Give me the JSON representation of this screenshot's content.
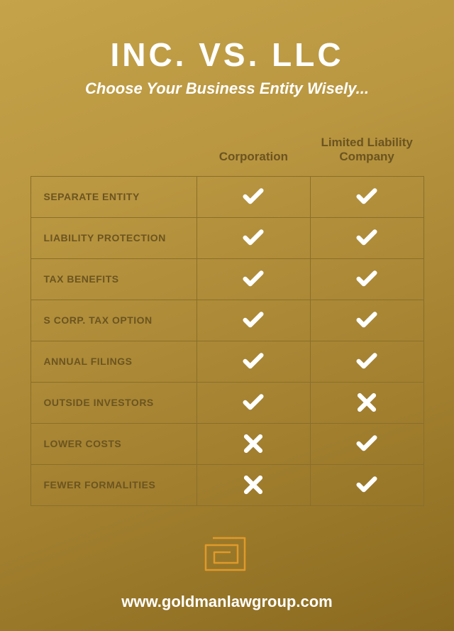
{
  "title": "INC.  VS.  LLC",
  "subtitle": "Choose Your Business Entity Wisely...",
  "columns": [
    "Corporation",
    "Limited Liability\nCompany"
  ],
  "rows": [
    {
      "label": "SEPARATE ENTITY",
      "corp": true,
      "llc": true
    },
    {
      "label": "LIABILITY PROTECTION",
      "corp": true,
      "llc": true
    },
    {
      "label": "TAX BENEFITS",
      "corp": true,
      "llc": true
    },
    {
      "label": "S CORP. TAX OPTION",
      "corp": true,
      "llc": true
    },
    {
      "label": "ANNUAL FILINGS",
      "corp": true,
      "llc": true
    },
    {
      "label": "OUTSIDE INVESTORS",
      "corp": true,
      "llc": false
    },
    {
      "label": "LOWER COSTS",
      "corp": false,
      "llc": true
    },
    {
      "label": "FEWER FORMALITIES",
      "corp": false,
      "llc": true
    }
  ],
  "footer_url": "www.goldmanlawgroup.com",
  "colors": {
    "bg_start": "#c4a34a",
    "bg_end": "#8a6a1f",
    "border": "#8a6f2a",
    "text_dark": "#6b5420",
    "icon": "#ffffff",
    "logo": "#e09a2a"
  },
  "fonts": {
    "title_size": 46,
    "subtitle_size": 22,
    "header_size": 17,
    "label_size": 14,
    "url_size": 22
  }
}
